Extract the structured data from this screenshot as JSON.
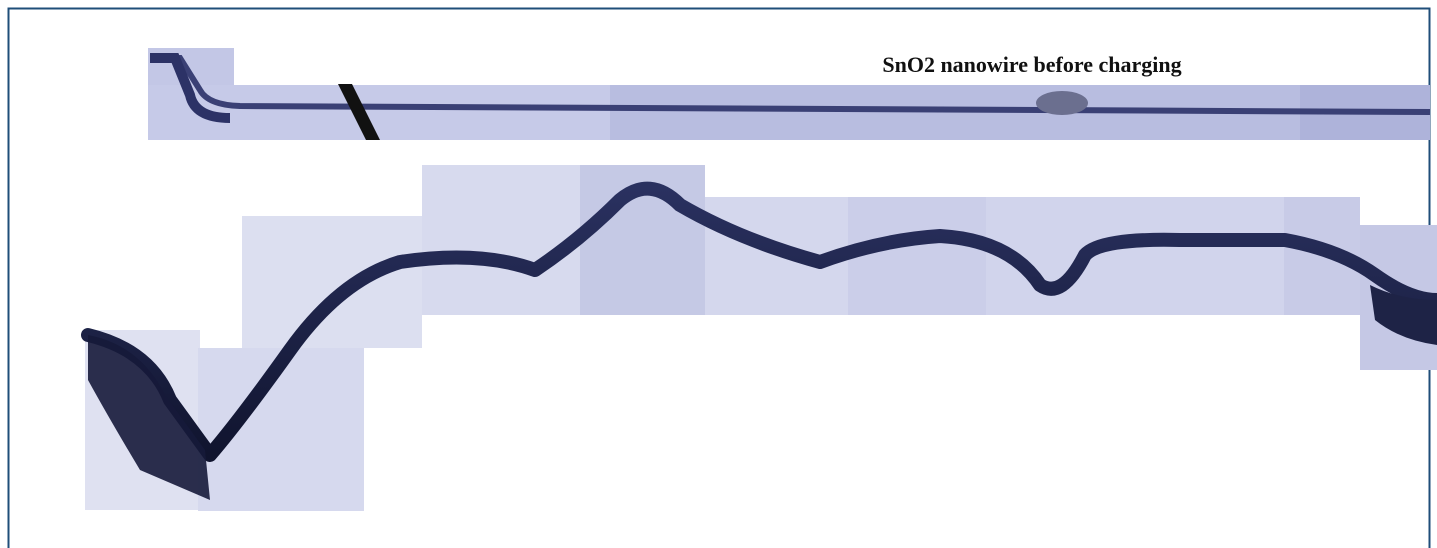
{
  "caption": "SnO2 nanowire before charging"
}
